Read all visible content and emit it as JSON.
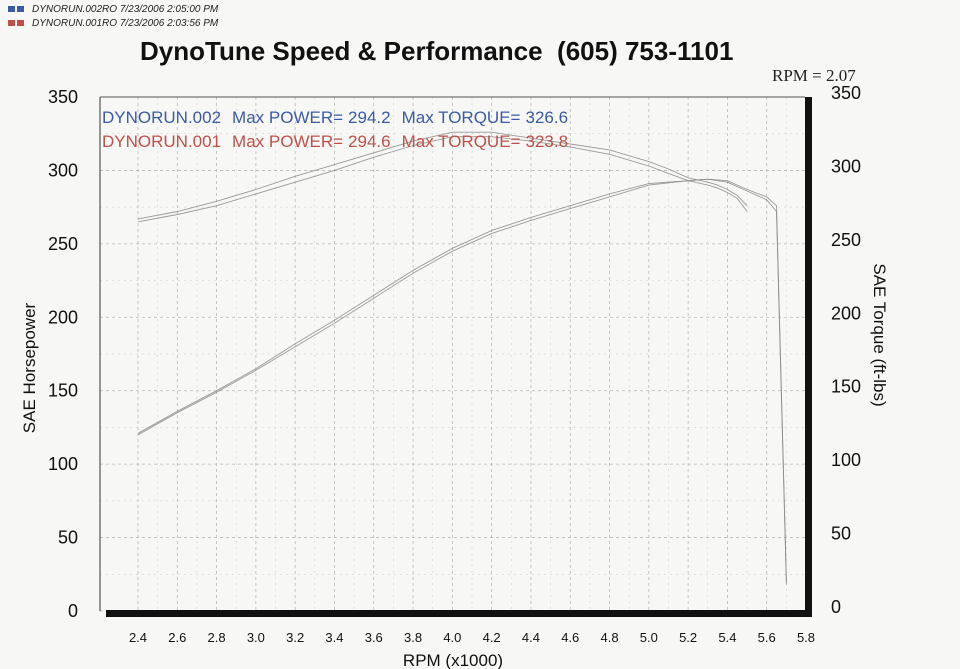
{
  "header": {
    "runs": [
      {
        "name": "DYNORUN.002RO",
        "date": "7/23/2006",
        "time": "2:05:00 PM",
        "color": "#3b5aa8"
      },
      {
        "name": "DYNORUN.001RO",
        "date": "7/23/2006",
        "time": "2:03:56 PM",
        "color": "#c2504a"
      }
    ],
    "title": "DynoTune Speed & Performance  (605) 753-1101",
    "rpm_ratio": "RPM = 2.07"
  },
  "chart_data": {
    "type": "line",
    "xlabel": "RPM (x1000)",
    "ylabel": "SAE Horsepower",
    "y2label": "SAE Torque (ft-lbs)",
    "xlim": [
      2.3,
      5.8
    ],
    "ylim": [
      0,
      350
    ],
    "y2lim": [
      0,
      350
    ],
    "x_ticks": [
      "2.4",
      "2.6",
      "2.8",
      "3.0",
      "3.2",
      "3.4",
      "3.6",
      "3.8",
      "4.0",
      "4.2",
      "4.4",
      "4.6",
      "4.8",
      "5.0",
      "5.2",
      "5.4",
      "5.6",
      "5.8"
    ],
    "y_ticks": [
      "0",
      "50",
      "100",
      "150",
      "200",
      "250",
      "300",
      "350"
    ],
    "y2_ticks": [
      "0",
      "50",
      "100",
      "150",
      "200",
      "250",
      "300",
      "350"
    ],
    "grid": true,
    "legend_placement": "top-left",
    "legend": [
      {
        "run": "DYNORUN.002",
        "power_label": "Max POWER=",
        "power": "294.2",
        "torque_label": "Max TORQUE=",
        "torque": "326.6",
        "color": "#3b5aa8"
      },
      {
        "run": "DYNORUN.001",
        "power_label": "Max POWER=",
        "power": "294.6",
        "torque_label": "Max TORQUE=",
        "torque": "323.8",
        "color": "#c2504a"
      }
    ],
    "series": [
      {
        "name": "DYNORUN.002",
        "kind": "torque",
        "color": "#3b5aa8",
        "x": [
          2.4,
          2.6,
          2.8,
          3.0,
          3.2,
          3.4,
          3.6,
          3.8,
          4.0,
          4.2,
          4.4,
          4.6,
          4.8,
          5.0,
          5.1,
          5.2,
          5.3,
          5.35,
          5.4,
          5.45,
          5.5
        ],
        "y": [
          267,
          272,
          279,
          287,
          296,
          304,
          312,
          320,
          326,
          326,
          322,
          318,
          314,
          306,
          301,
          295,
          292,
          290,
          287,
          283,
          276
        ]
      },
      {
        "name": "DYNORUN.001",
        "kind": "torque",
        "color": "#c2504a",
        "x": [
          2.4,
          2.6,
          2.8,
          3.0,
          3.2,
          3.4,
          3.6,
          3.8,
          4.0,
          4.2,
          4.4,
          4.6,
          4.8,
          5.0,
          5.1,
          5.2,
          5.3,
          5.35,
          5.4,
          5.45,
          5.5
        ],
        "y": [
          265,
          270,
          276,
          284,
          292,
          300,
          309,
          317,
          323,
          323,
          320,
          316,
          311,
          303,
          298,
          293,
          290,
          288,
          285,
          281,
          272
        ]
      },
      {
        "name": "DYNORUN.002",
        "kind": "power",
        "color": "#3b5aa8",
        "x": [
          2.4,
          2.6,
          2.8,
          3.0,
          3.2,
          3.4,
          3.6,
          3.8,
          4.0,
          4.2,
          4.4,
          4.6,
          4.8,
          5.0,
          5.2,
          5.3,
          5.4,
          5.5,
          5.6,
          5.65,
          5.7
        ],
        "y": [
          121,
          136,
          150,
          165,
          182,
          198,
          215,
          232,
          247,
          259,
          268,
          276,
          284,
          291,
          293,
          294,
          292,
          286,
          280,
          272,
          18
        ]
      },
      {
        "name": "DYNORUN.001",
        "kind": "power",
        "color": "#c2504a",
        "x": [
          2.4,
          2.6,
          2.8,
          3.0,
          3.2,
          3.4,
          3.6,
          3.8,
          4.0,
          4.2,
          4.4,
          4.6,
          4.8,
          5.0,
          5.2,
          5.3,
          5.4,
          5.5,
          5.6,
          5.65,
          5.7
        ],
        "y": [
          120,
          135,
          149,
          164,
          180,
          196,
          213,
          230,
          245,
          257,
          266,
          274,
          282,
          290,
          293,
          294,
          293,
          287,
          282,
          276,
          20
        ]
      }
    ]
  },
  "colors": {
    "gridline": "#b9b9b9",
    "frame": "#111111",
    "trace": "#8a8a8a"
  }
}
